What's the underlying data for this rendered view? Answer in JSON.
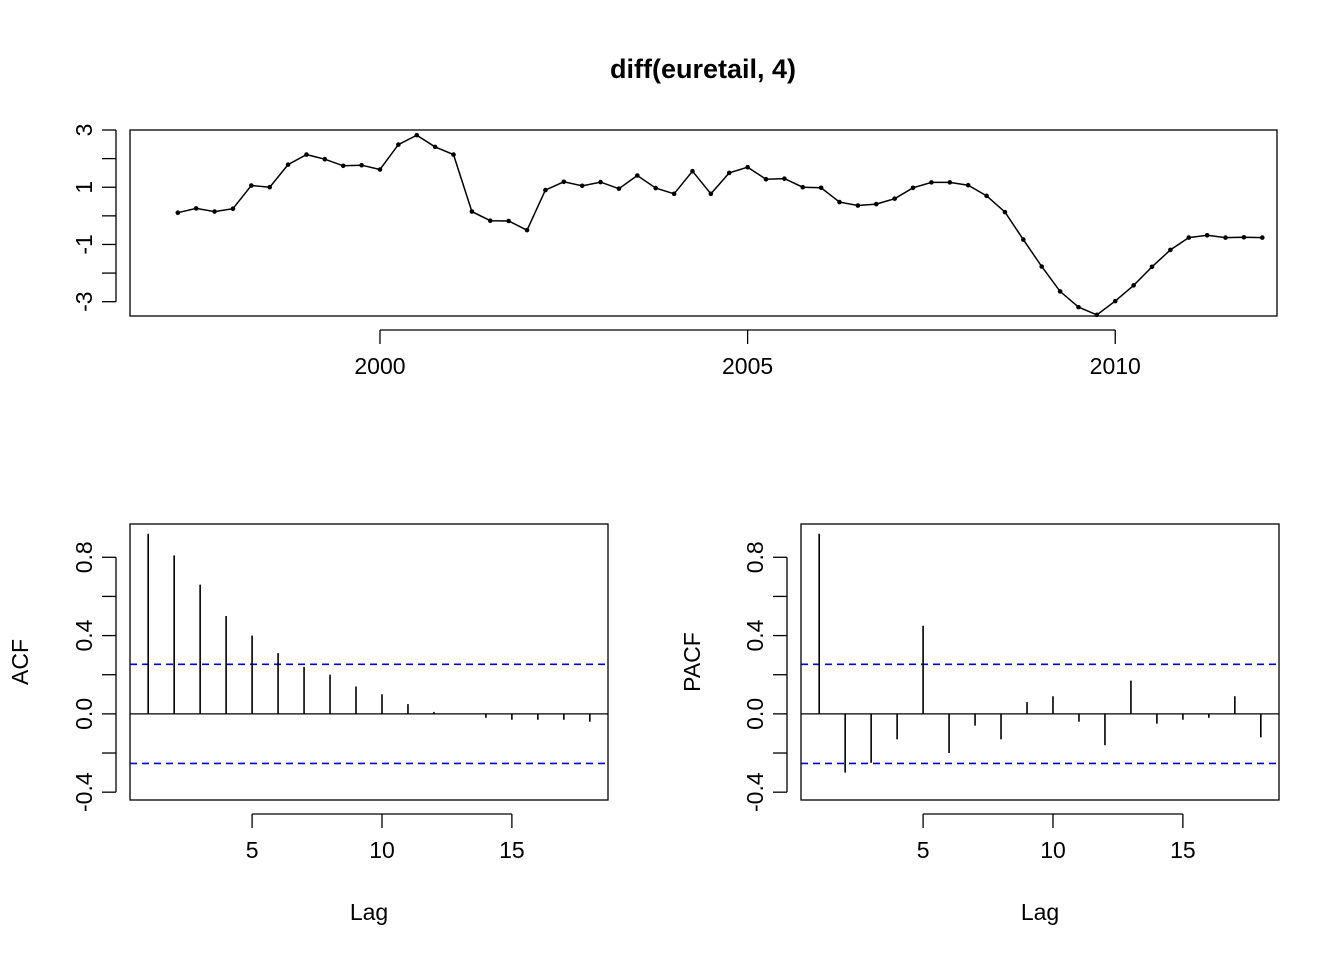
{
  "title": "diff(euretail, 4)",
  "colors": {
    "line": "#000000",
    "ci": "#0000CD"
  },
  "chart_data": [
    {
      "type": "line",
      "title": "diff(euretail, 4)",
      "xlabel": "",
      "ylabel": "",
      "x_start": 1997.25,
      "frequency": 4,
      "xlim": [
        1996.6,
        2012.2
      ],
      "ylim": [
        -3.5,
        3.0
      ],
      "xticks": [
        2000,
        2005,
        2010
      ],
      "xtick_labels": [
        "2000",
        "2005",
        "2010"
      ],
      "yticks": [
        -3,
        -2,
        -1,
        0,
        1,
        2,
        3
      ],
      "ytick_labels": [
        "-3",
        "",
        "-1",
        "",
        "1",
        "",
        "3"
      ],
      "values": [
        0.11,
        0.26,
        0.15,
        0.25,
        1.06,
        1.0,
        1.79,
        2.14,
        1.98,
        1.75,
        1.77,
        1.62,
        2.49,
        2.82,
        2.41,
        2.14,
        0.15,
        -0.17,
        -0.18,
        -0.5,
        0.9,
        1.19,
        1.05,
        1.18,
        0.95,
        1.41,
        0.97,
        0.77,
        1.56,
        0.77,
        1.5,
        1.7,
        1.28,
        1.3,
        1.0,
        0.98,
        0.48,
        0.36,
        0.41,
        0.6,
        0.98,
        1.17,
        1.17,
        1.07,
        0.7,
        0.13,
        -0.83,
        -1.77,
        -2.64,
        -3.19,
        -3.46,
        -2.98,
        -2.43,
        -1.78,
        -1.19,
        -0.76,
        -0.68,
        -0.76,
        -0.75,
        -0.76
      ],
      "grid": false,
      "legend": "none"
    },
    {
      "type": "bar",
      "title": "",
      "xlabel": "Lag",
      "ylabel": "ACF",
      "x": [
        1,
        2,
        3,
        4,
        5,
        6,
        7,
        8,
        9,
        10,
        11,
        12,
        13,
        14,
        15,
        16,
        17,
        18
      ],
      "values": [
        0.92,
        0.81,
        0.66,
        0.5,
        0.4,
        0.31,
        0.24,
        0.2,
        0.14,
        0.1,
        0.05,
        0.01,
        0.0,
        -0.02,
        -0.03,
        -0.03,
        -0.03,
        -0.04
      ],
      "ci": 0.253,
      "xlim": [
        0.3,
        18.7
      ],
      "ylim": [
        -0.44,
        0.97
      ],
      "xticks": [
        5,
        10,
        15
      ],
      "xtick_labels": [
        "5",
        "10",
        "15"
      ],
      "yticks": [
        -0.4,
        -0.2,
        0.0,
        0.2,
        0.4,
        0.6,
        0.8
      ],
      "ytick_labels": [
        "-0.4",
        "",
        "0.0",
        "",
        "0.4",
        "",
        "0.8"
      ],
      "grid": false,
      "legend": "none"
    },
    {
      "type": "bar",
      "title": "",
      "xlabel": "Lag",
      "ylabel": "PACF",
      "x": [
        1,
        2,
        3,
        4,
        5,
        6,
        7,
        8,
        9,
        10,
        11,
        12,
        13,
        14,
        15,
        16,
        17,
        18
      ],
      "values": [
        0.92,
        -0.3,
        -0.25,
        -0.13,
        0.45,
        -0.2,
        -0.06,
        -0.13,
        0.06,
        0.09,
        -0.04,
        -0.16,
        0.17,
        -0.05,
        -0.03,
        -0.02,
        0.09,
        -0.12
      ],
      "ci": 0.253,
      "xlim": [
        0.3,
        18.7
      ],
      "ylim": [
        -0.44,
        0.97
      ],
      "xticks": [
        5,
        10,
        15
      ],
      "xtick_labels": [
        "5",
        "10",
        "15"
      ],
      "yticks": [
        -0.4,
        -0.2,
        0.0,
        0.2,
        0.4,
        0.6,
        0.8
      ],
      "ytick_labels": [
        "-0.4",
        "",
        "0.0",
        "",
        "0.4",
        "",
        "0.8"
      ],
      "grid": false,
      "legend": "none"
    }
  ]
}
